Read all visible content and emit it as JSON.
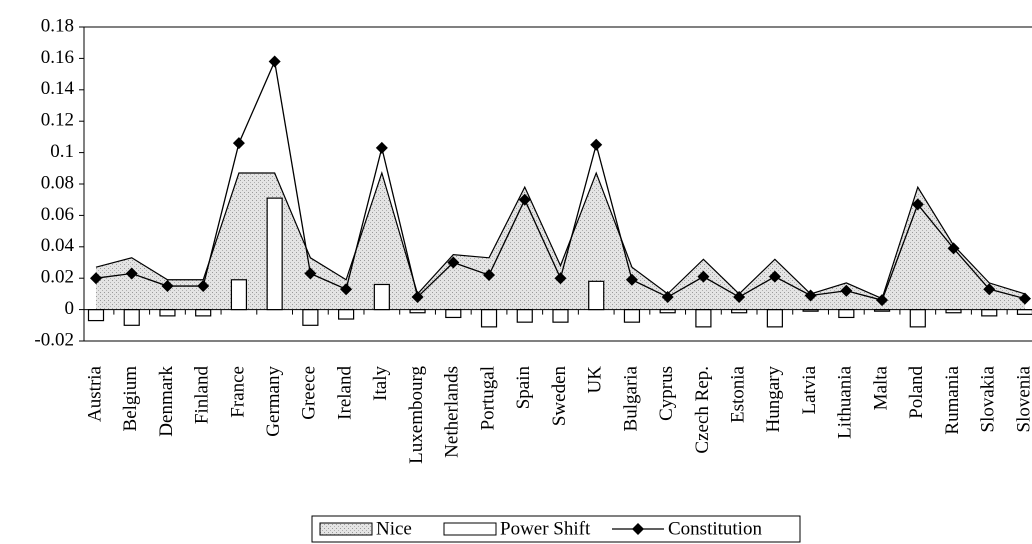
{
  "chart_data": {
    "type": "combo",
    "categories": [
      "Austria",
      "Belgium",
      "Denmark",
      "Finland",
      "France",
      "Germany",
      "Greece",
      "Ireland",
      "Italy",
      "Luxembourg",
      "Netherlands",
      "Portugal",
      "Spain",
      "Sweden",
      "UK",
      "Bulgaria",
      "Cyprus",
      "Czech Rep.",
      "Estonia",
      "Hungary",
      "Latvia",
      "Lithuania",
      "Malta",
      "Poland",
      "Rumania",
      "Slovakia",
      "Slovenia"
    ],
    "series": [
      {
        "name": "Nice",
        "type": "area",
        "color": "#d9d9d9",
        "values": [
          0.027,
          0.033,
          0.019,
          0.019,
          0.087,
          0.087,
          0.033,
          0.019,
          0.087,
          0.01,
          0.035,
          0.033,
          0.078,
          0.028,
          0.087,
          0.027,
          0.01,
          0.032,
          0.01,
          0.032,
          0.01,
          0.017,
          0.007,
          0.078,
          0.041,
          0.017,
          0.01
        ]
      },
      {
        "name": "Power Shift",
        "type": "bar",
        "color": "#ffffff",
        "values": [
          -0.007,
          -0.01,
          -0.004,
          -0.004,
          0.019,
          0.071,
          -0.01,
          -0.006,
          0.016,
          -0.002,
          -0.005,
          -0.011,
          -0.008,
          -0.008,
          0.018,
          -0.008,
          -0.002,
          -0.011,
          -0.002,
          -0.011,
          -0.001,
          -0.005,
          -0.001,
          -0.011,
          -0.002,
          -0.004,
          -0.003
        ]
      },
      {
        "name": "Constitution",
        "type": "line",
        "color": "#000000",
        "values": [
          0.02,
          0.023,
          0.015,
          0.015,
          0.106,
          0.158,
          0.023,
          0.013,
          0.103,
          0.008,
          0.03,
          0.022,
          0.07,
          0.02,
          0.105,
          0.019,
          0.008,
          0.021,
          0.008,
          0.021,
          0.009,
          0.012,
          0.006,
          0.067,
          0.039,
          0.013,
          0.007
        ]
      }
    ],
    "ylim": [
      -0.02,
      0.18
    ],
    "yticks": [
      -0.02,
      0,
      0.02,
      0.04,
      0.06,
      0.08,
      0.1,
      0.12,
      0.14,
      0.16,
      0.18
    ],
    "grid": false
  }
}
